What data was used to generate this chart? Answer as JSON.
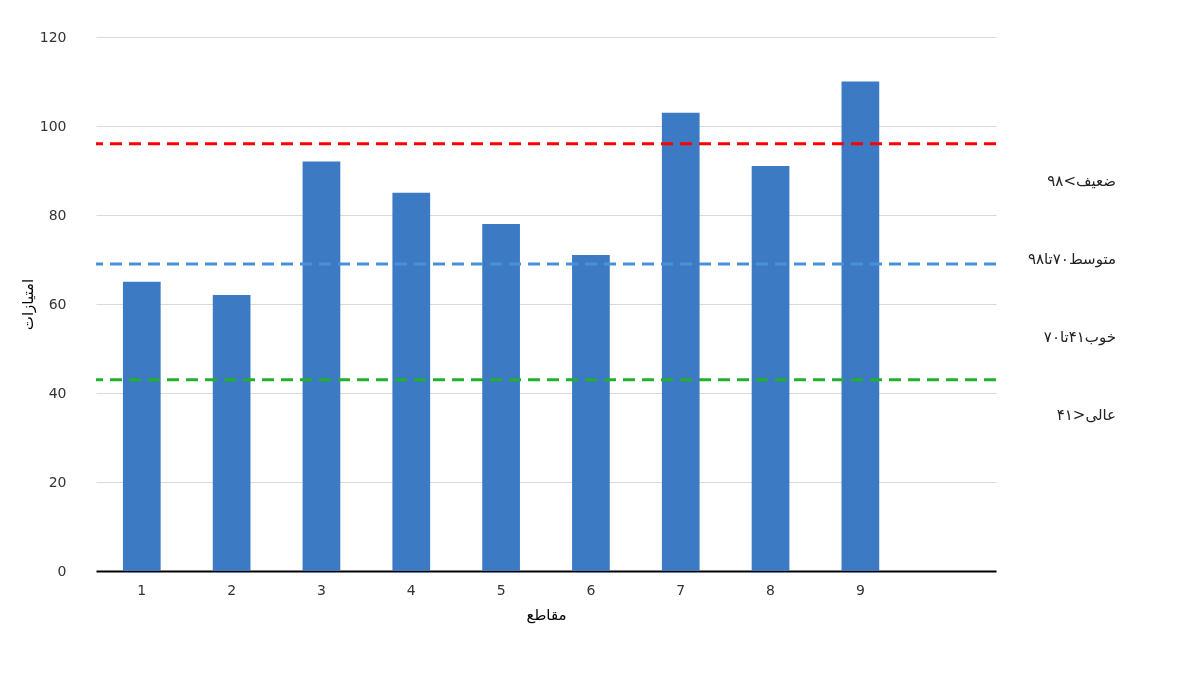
{
  "chart_data": {
    "type": "bar",
    "xlabel": "مقاطع",
    "ylabel": "امتیازات",
    "categories": [
      "1",
      "2",
      "3",
      "4",
      "5",
      "6",
      "7",
      "8",
      "9",
      null
    ],
    "values": [
      65,
      62,
      92,
      85,
      78,
      71,
      103,
      91,
      110,
      null
    ],
    "color": "#3c7bc3",
    "ylim": [
      0,
      120
    ],
    "yticks": [
      0,
      20,
      40,
      60,
      80,
      100,
      120
    ],
    "grid": "y",
    "ref_lines": [
      {
        "axis": "y",
        "value": 96,
        "color": "#ff0000",
        "line_style": "dashed"
      },
      {
        "axis": "y",
        "value": 69,
        "color": "#4a90d9",
        "line_style": "dashed"
      },
      {
        "axis": "y",
        "value": 43,
        "color": "#22b02a",
        "line_style": "dashed"
      }
    ],
    "annotations": [
      "ضعیف>۹۸",
      "متوسط۷۰تا۹۸",
      "خوب۴۱تا۷۰",
      "عالی<۴۱"
    ]
  }
}
